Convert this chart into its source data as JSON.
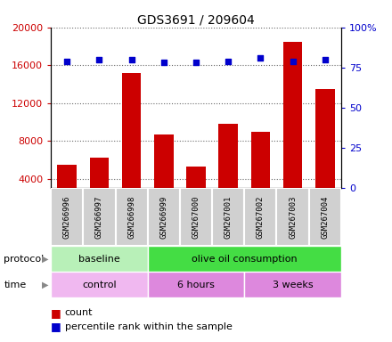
{
  "title": "GDS3691 / 209604",
  "samples": [
    "GSM266996",
    "GSM266997",
    "GSM266998",
    "GSM266999",
    "GSM267000",
    "GSM267001",
    "GSM267002",
    "GSM267003",
    "GSM267004"
  ],
  "bar_values": [
    5500,
    6200,
    15200,
    8700,
    5300,
    9800,
    9000,
    18500,
    13500
  ],
  "dot_values": [
    79,
    80,
    80,
    78,
    78,
    79,
    81,
    79,
    80
  ],
  "bar_color": "#cc0000",
  "dot_color": "#0000cc",
  "ylim_left": [
    3000,
    20000
  ],
  "ylim_right": [
    0,
    100
  ],
  "yticks_left": [
    4000,
    8000,
    12000,
    16000,
    20000
  ],
  "ytick_labels_left": [
    "4000",
    "8000",
    "12000",
    "16000",
    "20000"
  ],
  "yticks_right": [
    0,
    25,
    50,
    75,
    100
  ],
  "ytick_labels_right": [
    "0",
    "25",
    "50",
    "75",
    "100%"
  ],
  "protocol_groups": [
    {
      "label": "baseline",
      "start": 0,
      "end": 3,
      "color": "#b8f0b8"
    },
    {
      "label": "olive oil consumption",
      "start": 3,
      "end": 9,
      "color": "#44dd44"
    }
  ],
  "time_groups": [
    {
      "label": "control",
      "start": 0,
      "end": 3,
      "color": "#f0b8f0"
    },
    {
      "label": "6 hours",
      "start": 3,
      "end": 6,
      "color": "#dd88dd"
    },
    {
      "label": "3 weeks",
      "start": 6,
      "end": 9,
      "color": "#dd88dd"
    }
  ],
  "legend_count_label": "count",
  "legend_pct_label": "percentile rank within the sample",
  "protocol_label": "protocol",
  "time_label": "time",
  "background_color": "#ffffff",
  "plot_bg_color": "#ffffff",
  "label_box_color": "#d0d0d0",
  "label_box_edge": "#ffffff"
}
